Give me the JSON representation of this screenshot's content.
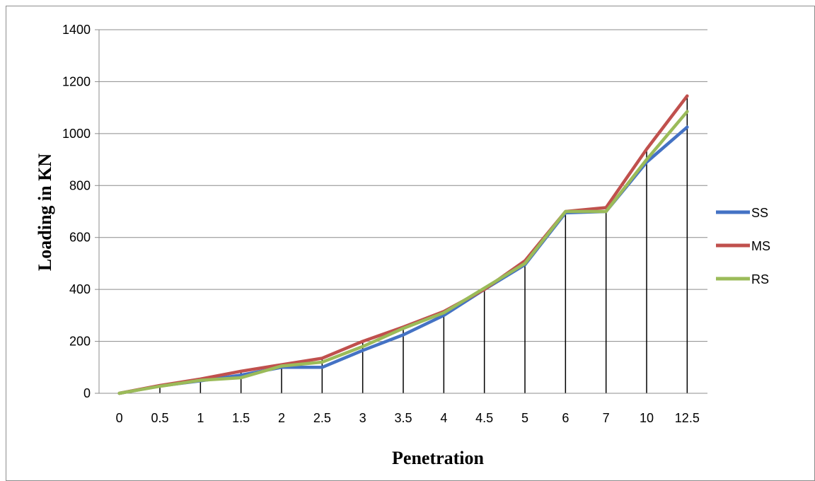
{
  "chart_data": {
    "type": "line",
    "title": "",
    "xlabel": "Penetration",
    "ylabel": "Loading in KN",
    "categories": [
      "0",
      "0.5",
      "1",
      "1.5",
      "2",
      "2.5",
      "3",
      "3.5",
      "4",
      "4.5",
      "5",
      "6",
      "7",
      "10",
      "12.5"
    ],
    "ylim": [
      0,
      1400
    ],
    "yticks": [
      0,
      200,
      400,
      600,
      800,
      1000,
      1200,
      1400
    ],
    "grid": "horizontal",
    "drop_lines": true,
    "legend_position": "right",
    "series": [
      {
        "name": "SS",
        "color": "#4472c4",
        "values": [
          0,
          28,
          48,
          70,
          100,
          100,
          165,
          225,
          300,
          400,
          495,
          695,
          700,
          890,
          1025
        ]
      },
      {
        "name": "MS",
        "color": "#c0504d",
        "values": [
          0,
          30,
          55,
          85,
          110,
          135,
          200,
          255,
          315,
          400,
          510,
          700,
          715,
          940,
          1145
        ]
      },
      {
        "name": "RS",
        "color": "#9bbb59",
        "values": [
          0,
          27,
          50,
          60,
          105,
          120,
          180,
          250,
          310,
          405,
          500,
          700,
          700,
          900,
          1085
        ]
      }
    ]
  }
}
